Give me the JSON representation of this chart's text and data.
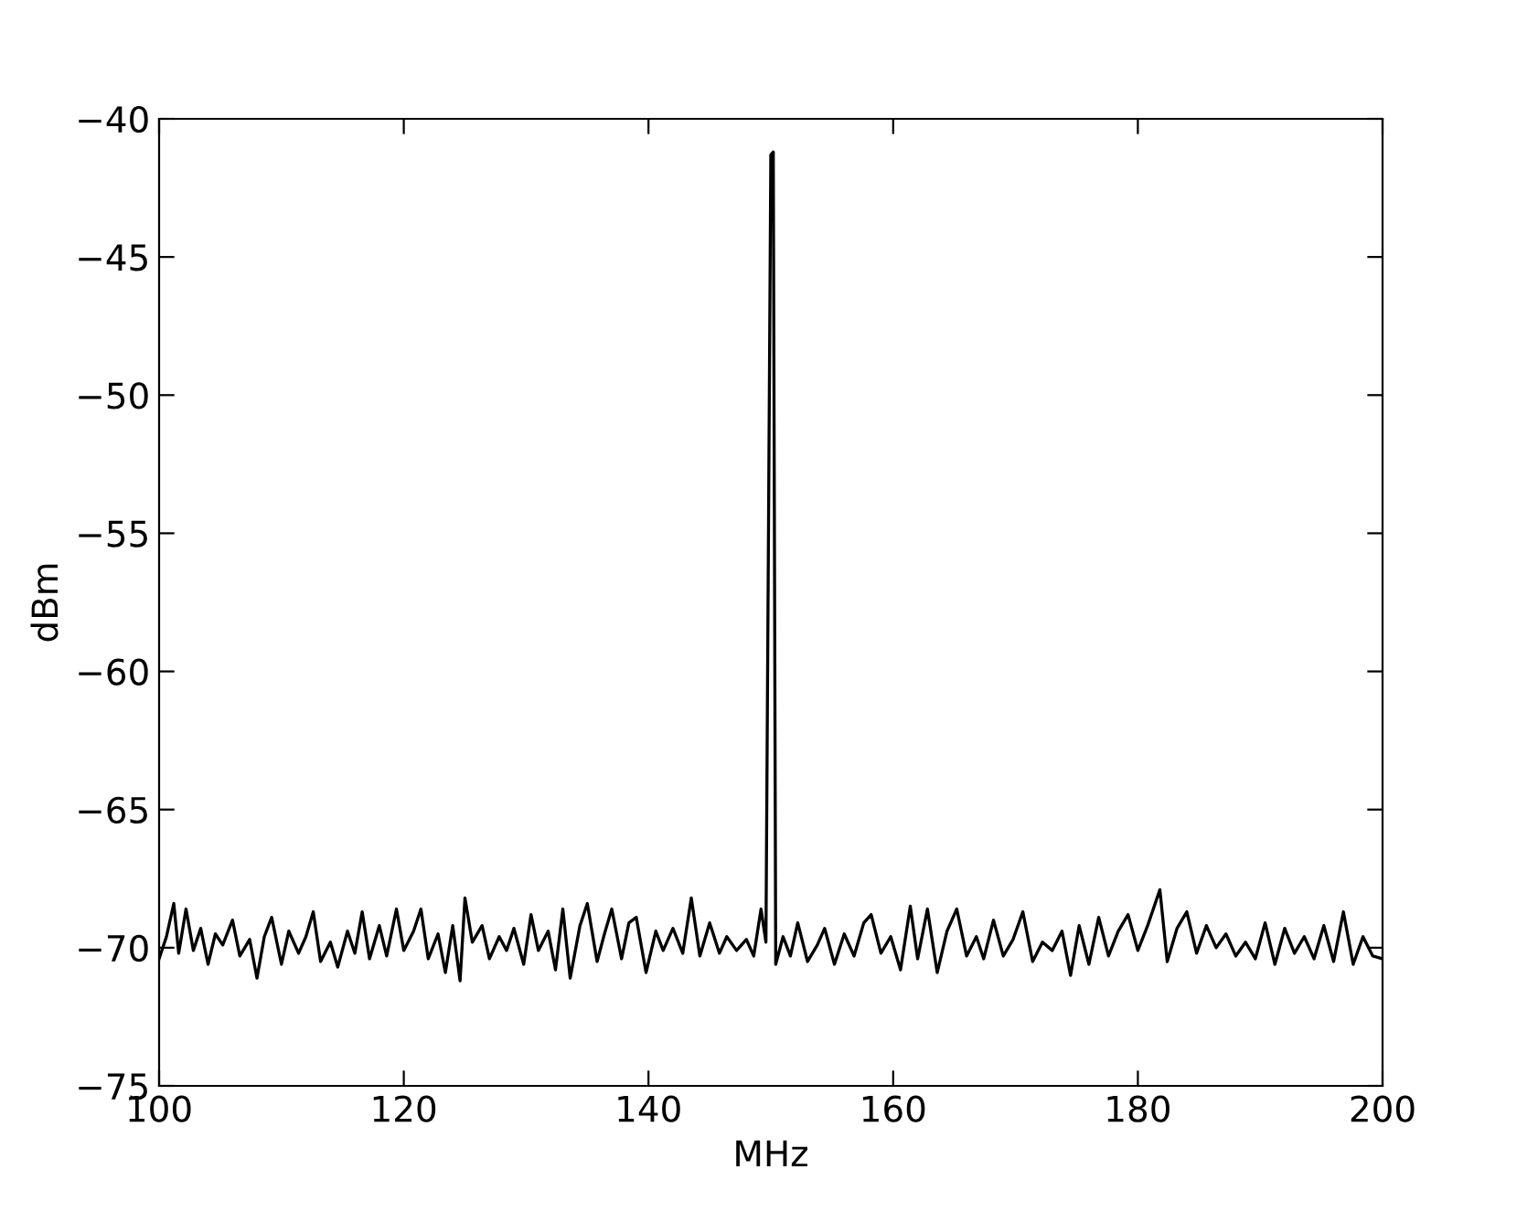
{
  "chart_data": {
    "type": "line",
    "xlabel": "MHz",
    "ylabel": "dBm",
    "xlim": [
      100,
      200
    ],
    "ylim": [
      -75,
      -40
    ],
    "xticks": [
      100,
      120,
      140,
      160,
      180,
      200
    ],
    "yticks": [
      -75,
      -70,
      -65,
      -60,
      -55,
      -50,
      -45,
      -40
    ],
    "grid": false,
    "series": [
      {
        "color": "#000000",
        "x": [
          100,
          100.6,
          101.2,
          101.6,
          102.2,
          102.8,
          103.4,
          104,
          104.6,
          105.2,
          106,
          106.6,
          107.4,
          108,
          108.6,
          109.2,
          110,
          110.6,
          111.4,
          112,
          112.6,
          113.2,
          114,
          114.6,
          115.4,
          116,
          116.6,
          117.2,
          118,
          118.6,
          119.4,
          120,
          120.8,
          121.4,
          122,
          122.8,
          123.4,
          124,
          124.6,
          125,
          125.6,
          126.4,
          127,
          127.8,
          128.4,
          129,
          129.8,
          130.4,
          131,
          131.8,
          132.4,
          133,
          133.6,
          134.4,
          135,
          135.8,
          136.4,
          137,
          137.8,
          138.4,
          139,
          139.8,
          140.6,
          141.2,
          142,
          142.8,
          143.5,
          144.2,
          145,
          145.8,
          146.4,
          147.2,
          148,
          148.6,
          149.2,
          149.6,
          150.0,
          150.2,
          150.4,
          151,
          151.6,
          152.2,
          153,
          153.8,
          154.4,
          155.2,
          156,
          156.8,
          157.6,
          158.2,
          159,
          159.8,
          160.6,
          161.4,
          162,
          162.8,
          163.6,
          164.4,
          165.2,
          166,
          166.8,
          167.4,
          168.2,
          169,
          169.8,
          170.6,
          171.4,
          172.2,
          173,
          173.8,
          174.5,
          175.2,
          176,
          176.8,
          177.6,
          178.4,
          179.2,
          180,
          180.8,
          181.8,
          182.4,
          183.2,
          184,
          184.8,
          185.6,
          186.4,
          187.2,
          188,
          188.8,
          189.6,
          190.4,
          191.2,
          192,
          192.8,
          193.6,
          194.4,
          195.2,
          196,
          196.8,
          197.6,
          198.4,
          199.2,
          200
        ],
        "values": [
          -70.4,
          -69.6,
          -68.4,
          -70.2,
          -68.6,
          -70.1,
          -69.3,
          -70.6,
          -69.5,
          -69.9,
          -69,
          -70.3,
          -69.7,
          -71.1,
          -69.6,
          -68.9,
          -70.6,
          -69.4,
          -70.2,
          -69.6,
          -68.7,
          -70.5,
          -69.8,
          -70.7,
          -69.4,
          -70.2,
          -68.7,
          -70.4,
          -69.2,
          -70.3,
          -68.6,
          -70.1,
          -69.4,
          -68.6,
          -70.4,
          -69.5,
          -70.9,
          -69.2,
          -71.2,
          -68.2,
          -69.8,
          -69.2,
          -70.4,
          -69.6,
          -70.1,
          -69.3,
          -70.6,
          -68.8,
          -70.1,
          -69.4,
          -70.8,
          -68.6,
          -71.1,
          -69.2,
          -68.4,
          -70.5,
          -69.5,
          -68.6,
          -70.4,
          -69.1,
          -68.9,
          -70.9,
          -69.4,
          -70.1,
          -69.3,
          -70.2,
          -68.2,
          -70.3,
          -69.1,
          -70.2,
          -69.6,
          -70.1,
          -69.7,
          -70.3,
          -68.6,
          -69.8,
          -41.3,
          -41.2,
          -70.6,
          -69.6,
          -70.3,
          -69.1,
          -70.5,
          -69.9,
          -69.3,
          -70.6,
          -69.5,
          -70.3,
          -69.1,
          -68.8,
          -70.2,
          -69.6,
          -70.8,
          -68.5,
          -70.4,
          -68.6,
          -70.9,
          -69.4,
          -68.6,
          -70.3,
          -69.6,
          -70.4,
          -69,
          -70.3,
          -69.7,
          -68.7,
          -70.5,
          -69.8,
          -70.1,
          -69.4,
          -71,
          -69.2,
          -70.6,
          -68.9,
          -70.3,
          -69.4,
          -68.8,
          -70.1,
          -69.2,
          -67.9,
          -70.5,
          -69.3,
          -68.7,
          -70.2,
          -69.2,
          -70,
          -69.5,
          -70.3,
          -69.8,
          -70.4,
          -69.1,
          -70.6,
          -69.3,
          -70.2,
          -69.6,
          -70.4,
          -69.2,
          -70.5,
          -68.7,
          -70.6,
          -69.6,
          -70.3,
          -70.4
        ]
      }
    ]
  }
}
